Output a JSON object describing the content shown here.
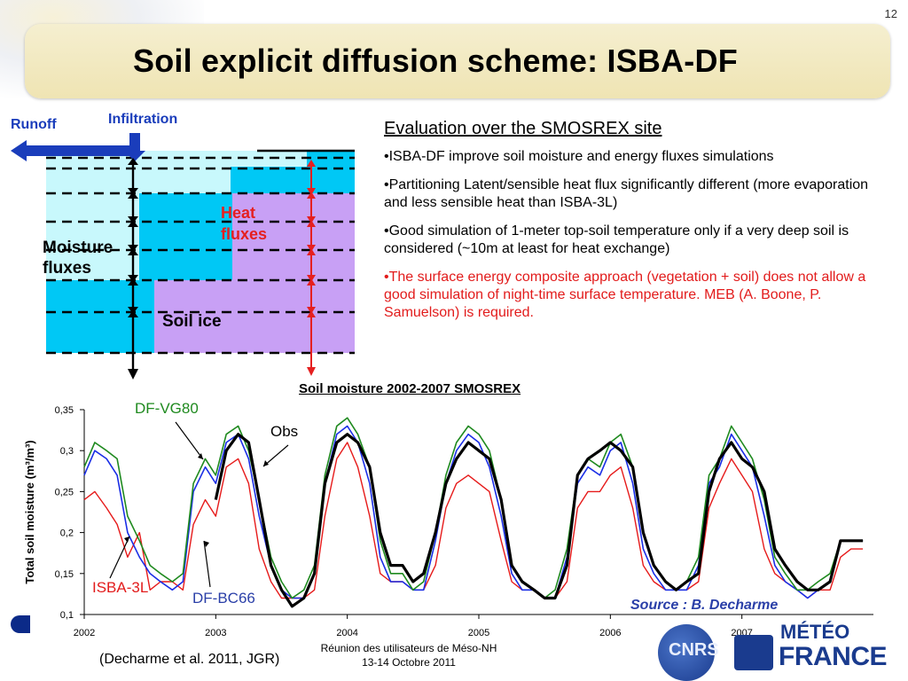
{
  "slide": {
    "number": "12",
    "title": "Soil explicit diffusion scheme: ISBA-DF"
  },
  "diagram": {
    "runoff": "Runoff",
    "infiltration": "Infiltration",
    "heat_fluxes_1": "Heat",
    "heat_fluxes_2": "fluxes",
    "moisture_fluxes_1": "Moisture",
    "moisture_fluxes_2": "fluxes",
    "soil_ice": "Soil ice",
    "colors": {
      "water": "#00c8f5",
      "light_water": "#c8f8fc",
      "ice": "#c8a0f5",
      "arrow_blue": "#1a3dbb",
      "arrow_red": "#e52020"
    }
  },
  "evaluation": {
    "heading": "Evaluation over the SMOSREX site",
    "bullets": [
      "•ISBA-DF improve soil moisture and energy fluxes simulations",
      "•Partitioning Latent/sensible heat flux significantly different (more evaporation and less sensible heat than ISBA-3L)",
      "•Good simulation of 1-meter top-soil temperature only if a very deep soil is considered (~10m at least for heat exchange)"
    ],
    "highlight_bullet": "•The surface energy composite approach (vegetation + soil) does not allow a good simulation of night-time surface temperature. MEB (A. Boone, P. Samuelson) is required."
  },
  "chart_data": {
    "type": "line",
    "title": "Soil moisture 2002-2007 SMOSREX",
    "ylabel": "Total soil moisture (m³/m³)",
    "xlabel": "",
    "ylim": [
      0.1,
      0.35
    ],
    "xlim": [
      2002,
      2008
    ],
    "y_ticks": [
      "0,1",
      "0,15",
      "0,2",
      "0,25",
      "0,3",
      "0,35"
    ],
    "x_ticks": [
      "2002",
      "2003",
      "2004",
      "2005",
      "2006",
      "2007"
    ],
    "x": [
      2002.0,
      2002.08,
      2002.17,
      2002.25,
      2002.33,
      2002.42,
      2002.5,
      2002.58,
      2002.67,
      2002.75,
      2002.83,
      2002.92,
      2003.0,
      2003.08,
      2003.17,
      2003.25,
      2003.33,
      2003.42,
      2003.5,
      2003.58,
      2003.67,
      2003.75,
      2003.83,
      2003.92,
      2004.0,
      2004.08,
      2004.17,
      2004.25,
      2004.33,
      2004.42,
      2004.5,
      2004.58,
      2004.67,
      2004.75,
      2004.83,
      2004.92,
      2005.0,
      2005.08,
      2005.17,
      2005.25,
      2005.33,
      2005.42,
      2005.5,
      2005.58,
      2005.67,
      2005.75,
      2005.83,
      2005.92,
      2006.0,
      2006.08,
      2006.17,
      2006.25,
      2006.33,
      2006.42,
      2006.5,
      2006.58,
      2006.67,
      2006.75,
      2006.83,
      2006.92,
      2007.0,
      2007.08,
      2007.17,
      2007.25,
      2007.33,
      2007.42,
      2007.5,
      2007.58,
      2007.67,
      2007.75,
      2007.83,
      2007.92
    ],
    "series": [
      {
        "name": "Obs",
        "color": "#000000",
        "width": 3.2,
        "values": [
          null,
          null,
          null,
          null,
          null,
          null,
          null,
          null,
          null,
          null,
          null,
          null,
          0.24,
          0.3,
          0.32,
          0.31,
          0.24,
          0.16,
          0.13,
          0.11,
          0.12,
          0.15,
          0.26,
          0.31,
          0.32,
          0.31,
          0.28,
          0.2,
          0.16,
          0.16,
          0.14,
          0.15,
          0.2,
          0.26,
          0.29,
          0.31,
          0.3,
          0.29,
          0.24,
          0.16,
          0.14,
          0.13,
          0.12,
          0.12,
          0.16,
          0.27,
          0.29,
          0.3,
          0.31,
          0.3,
          0.28,
          0.2,
          0.16,
          0.14,
          0.13,
          0.14,
          0.15,
          0.25,
          0.29,
          0.31,
          0.29,
          0.28,
          0.25,
          0.18,
          0.16,
          0.14,
          0.13,
          0.13,
          0.14,
          0.19,
          0.19,
          0.19
        ]
      },
      {
        "name": "DF-VG80",
        "color": "#1f8a1f",
        "width": 1.6,
        "values": [
          0.28,
          0.31,
          0.3,
          0.29,
          0.22,
          0.19,
          0.16,
          0.15,
          0.14,
          0.15,
          0.26,
          0.29,
          0.27,
          0.32,
          0.33,
          0.3,
          0.24,
          0.17,
          0.14,
          0.12,
          0.13,
          0.16,
          0.27,
          0.33,
          0.34,
          0.32,
          0.28,
          0.19,
          0.15,
          0.15,
          0.13,
          0.14,
          0.2,
          0.27,
          0.31,
          0.33,
          0.32,
          0.3,
          0.24,
          0.16,
          0.14,
          0.13,
          0.12,
          0.13,
          0.18,
          0.27,
          0.29,
          0.28,
          0.31,
          0.32,
          0.28,
          0.2,
          0.16,
          0.14,
          0.13,
          0.14,
          0.17,
          0.27,
          0.29,
          0.33,
          0.31,
          0.29,
          0.24,
          0.17,
          0.15,
          0.13,
          0.13,
          0.14,
          0.15,
          0.19,
          0.19,
          0.19
        ]
      },
      {
        "name": "DF-BC66",
        "color": "#1a2ee6",
        "width": 1.6,
        "values": [
          0.27,
          0.3,
          0.29,
          0.27,
          0.2,
          0.17,
          0.15,
          0.14,
          0.13,
          0.14,
          0.25,
          0.28,
          0.26,
          0.31,
          0.32,
          0.29,
          0.22,
          0.16,
          0.13,
          0.12,
          0.12,
          0.15,
          0.26,
          0.32,
          0.33,
          0.31,
          0.26,
          0.17,
          0.14,
          0.14,
          0.13,
          0.13,
          0.19,
          0.26,
          0.3,
          0.32,
          0.31,
          0.28,
          0.22,
          0.15,
          0.13,
          0.13,
          0.12,
          0.12,
          0.17,
          0.26,
          0.28,
          0.27,
          0.3,
          0.31,
          0.26,
          0.18,
          0.15,
          0.13,
          0.13,
          0.13,
          0.16,
          0.26,
          0.28,
          0.32,
          0.3,
          0.28,
          0.22,
          0.16,
          0.14,
          0.13,
          0.12,
          0.13,
          0.14,
          0.19,
          0.19,
          0.19
        ]
      },
      {
        "name": "ISBA-3L",
        "color": "#e61a1a",
        "width": 1.4,
        "values": [
          0.24,
          0.25,
          0.23,
          0.21,
          0.17,
          0.2,
          0.13,
          0.14,
          0.14,
          0.13,
          0.21,
          0.24,
          0.22,
          0.28,
          0.29,
          0.26,
          0.18,
          0.14,
          0.12,
          0.12,
          0.12,
          0.13,
          0.22,
          0.29,
          0.31,
          0.28,
          0.22,
          0.15,
          0.14,
          0.14,
          0.13,
          0.13,
          0.16,
          0.23,
          0.26,
          0.27,
          0.26,
          0.25,
          0.19,
          0.14,
          0.13,
          0.13,
          0.12,
          0.12,
          0.14,
          0.23,
          0.25,
          0.25,
          0.27,
          0.28,
          0.23,
          0.16,
          0.14,
          0.13,
          0.13,
          0.13,
          0.14,
          0.23,
          0.26,
          0.29,
          0.27,
          0.25,
          0.18,
          0.15,
          0.14,
          0.13,
          0.12,
          0.13,
          0.13,
          0.17,
          0.18,
          0.18
        ]
      }
    ],
    "legend_callouts": [
      "DF-VG80",
      "Obs",
      "ISBA-3L",
      "DF-BC66"
    ]
  },
  "source": "Source : B. Decharme",
  "citation": "(Decharme et al. 2011, JGR)",
  "footer": {
    "line1": "Réunion des utilisateurs de Méso-NH",
    "line2": "13-14 Octobre 2011"
  },
  "logos": {
    "cnrs": "CNRS",
    "meteo_1": "MÉTÉO",
    "meteo_2": "FRANCE"
  }
}
